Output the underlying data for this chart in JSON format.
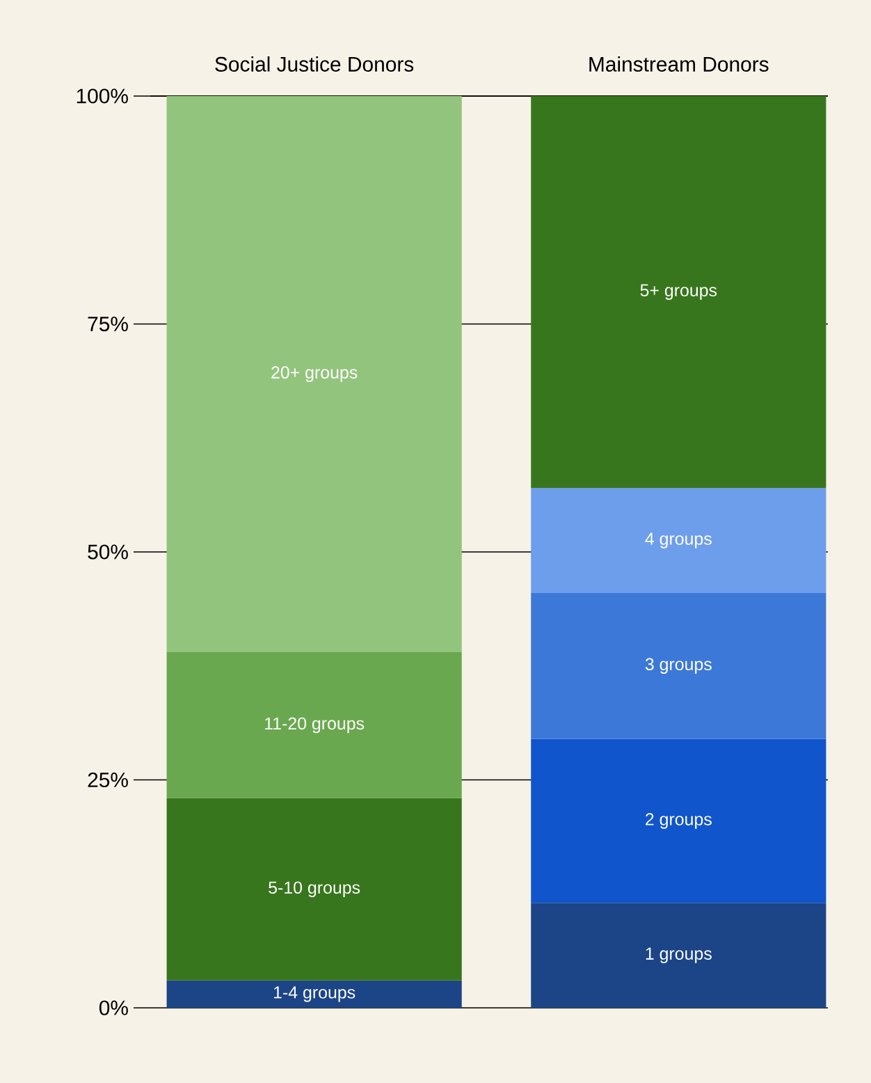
{
  "chart_data": {
    "type": "bar",
    "stacked": true,
    "categories": [
      "Social Justice Donors",
      "Mainstream Donors"
    ],
    "series": [
      {
        "name": "1-4 groups",
        "color": "#1c4587",
        "values": [
          3,
          null
        ]
      },
      {
        "name": "1 groups",
        "color": "#1c4587",
        "values": [
          null,
          11.5
        ]
      },
      {
        "name": "5-10 groups",
        "color": "#38761d",
        "values": [
          20,
          null
        ]
      },
      {
        "name": "2 groups",
        "color": "#1155cc",
        "values": [
          null,
          18
        ]
      },
      {
        "name": "11-20 groups",
        "color": "#6aa84f",
        "values": [
          16,
          null
        ]
      },
      {
        "name": "3 groups",
        "color": "#3c78d8",
        "values": [
          null,
          16
        ]
      },
      {
        "name": "20+ groups",
        "color": "#93c47d",
        "values": [
          61,
          null
        ]
      },
      {
        "name": "4 groups",
        "color": "#6d9eeb",
        "values": [
          null,
          11.5
        ]
      },
      {
        "name": "5+ groups",
        "color": "#38761d",
        "values": [
          null,
          43
        ]
      }
    ],
    "ylim": [
      0,
      100
    ],
    "yticks": [
      {
        "value": 0,
        "label": "0%"
      },
      {
        "value": 25,
        "label": "25%"
      },
      {
        "value": 50,
        "label": "50%"
      },
      {
        "value": 75,
        "label": "75%"
      },
      {
        "value": 100,
        "label": "100%"
      }
    ],
    "grid": "y"
  }
}
